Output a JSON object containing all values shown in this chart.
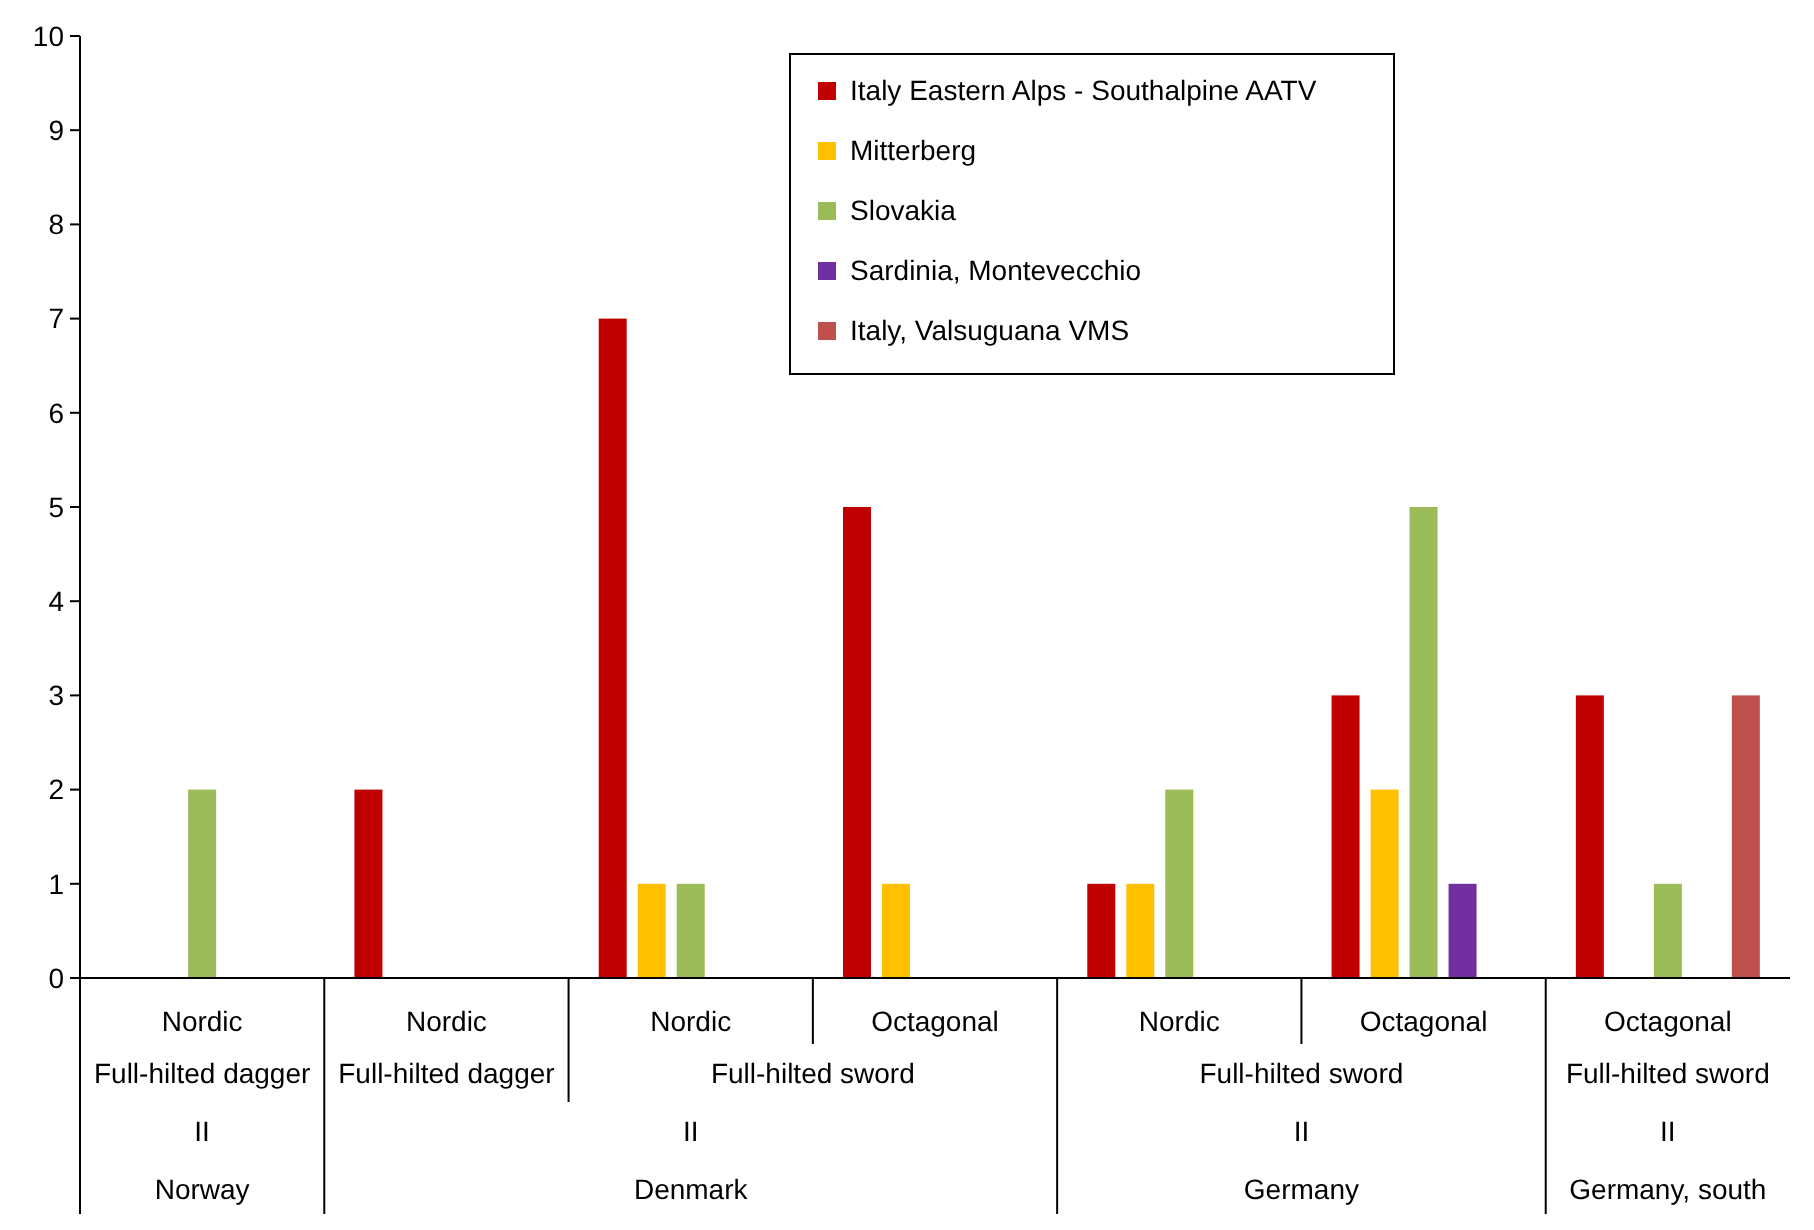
{
  "chart_data": {
    "type": "bar",
    "categories": [
      "Nordic",
      "Nordic",
      "Nordic",
      "Octagonal",
      "Nordic",
      "Octagonal",
      "Octagonal"
    ],
    "series": [
      {
        "name": "Italy Eastern Alps - Southalpine AATV",
        "color": "#c00000",
        "values": [
          null,
          2,
          7,
          5,
          1,
          3,
          3
        ]
      },
      {
        "name": "Mitterberg",
        "color": "#ffc000",
        "values": [
          null,
          null,
          1,
          1,
          1,
          2,
          null
        ]
      },
      {
        "name": "Slovakia",
        "color": "#9bbb59",
        "values": [
          2,
          null,
          1,
          null,
          2,
          5,
          1
        ]
      },
      {
        "name": "Sardinia, Montevecchio",
        "color": "#7030a0",
        "values": [
          null,
          null,
          null,
          null,
          null,
          1,
          null
        ]
      },
      {
        "name": "Italy, Valsuguana VMS",
        "color": "#c0504d",
        "values": [
          null,
          null,
          null,
          null,
          null,
          null,
          3
        ]
      }
    ],
    "annotations": [
      "Full-hilted dagger",
      "Full-hilted dagger",
      "Full-hilted sword",
      "Full-hilted sword",
      "Full-hilted sword",
      "II",
      "II",
      "II",
      "II",
      "Norway",
      "Denmark",
      "Germany",
      "Germany, south"
    ],
    "ylim": [
      0,
      10
    ],
    "yticks": [
      0,
      1,
      2,
      3,
      4,
      5,
      6,
      7,
      8,
      9,
      10
    ],
    "grid": false,
    "legend": "top"
  }
}
